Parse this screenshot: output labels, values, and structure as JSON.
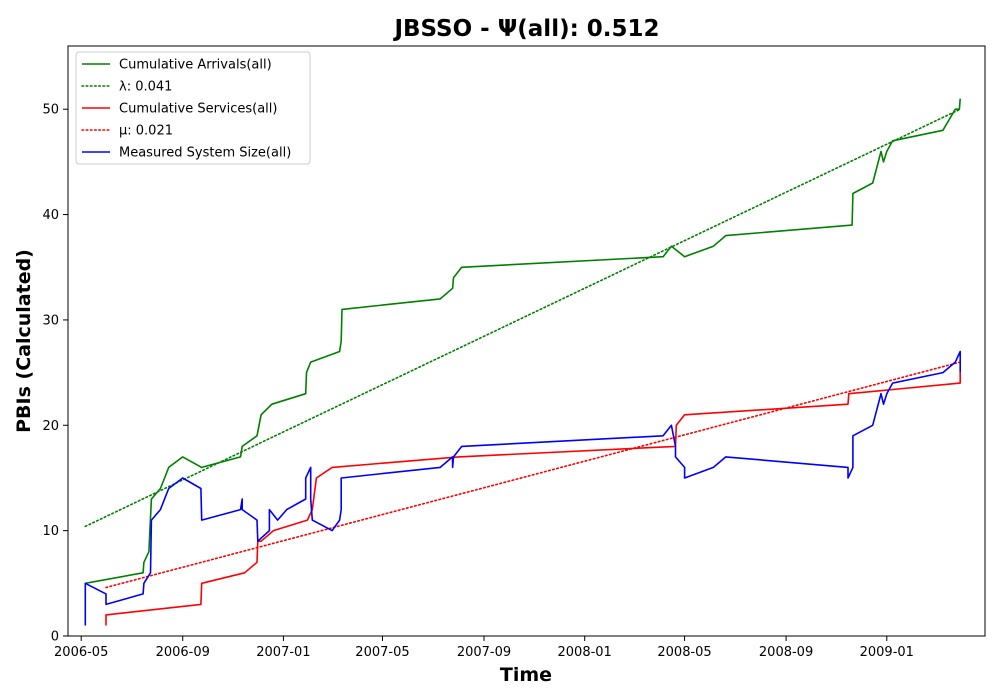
{
  "chart_data": {
    "type": "line",
    "title": "JBSSO -  Ψ(all): 0.512",
    "xlabel": "Time",
    "ylabel": "PBIs (Calculated)",
    "x_ticks": [
      "2006-05",
      "2006-09",
      "2007-01",
      "2007-05",
      "2007-09",
      "2008-01",
      "2008-05",
      "2008-09",
      "2009-01"
    ],
    "xlim": [
      "2006-04-15",
      "2009-04-30"
    ],
    "ylim": [
      0,
      56
    ],
    "y_ticks": [
      0,
      10,
      20,
      30,
      40,
      50
    ],
    "grid": false,
    "legend_position": "top-left",
    "series": [
      {
        "name": "Cumulative Arrivals(all)",
        "color": "#008000",
        "style": "solid",
        "points": [
          [
            "2006-05-06",
            5
          ],
          [
            "2006-07-15",
            6
          ],
          [
            "2006-07-16",
            7
          ],
          [
            "2006-07-22",
            8
          ],
          [
            "2006-07-25",
            13
          ],
          [
            "2006-08-05",
            14
          ],
          [
            "2006-08-10",
            15
          ],
          [
            "2006-08-15",
            16
          ],
          [
            "2006-09-01",
            17
          ],
          [
            "2006-09-24",
            16
          ],
          [
            "2006-11-10",
            17
          ],
          [
            "2006-11-12",
            18
          ],
          [
            "2006-11-30",
            19
          ],
          [
            "2006-12-05",
            21
          ],
          [
            "2006-12-18",
            22
          ],
          [
            "2007-01-28",
            23
          ],
          [
            "2007-01-29",
            25
          ],
          [
            "2007-02-03",
            26
          ],
          [
            "2007-03-10",
            27
          ],
          [
            "2007-03-12",
            28
          ],
          [
            "2007-03-13",
            31
          ],
          [
            "2007-07-10",
            32
          ],
          [
            "2007-07-25",
            33
          ],
          [
            "2007-07-26",
            34
          ],
          [
            "2007-08-05",
            35
          ],
          [
            "2008-04-05",
            36
          ],
          [
            "2008-04-15",
            37
          ],
          [
            "2008-05-01",
            36
          ],
          [
            "2008-06-05",
            37
          ],
          [
            "2008-06-20",
            38
          ],
          [
            "2008-11-20",
            39
          ],
          [
            "2008-11-21",
            42
          ],
          [
            "2008-12-15",
            43
          ],
          [
            "2008-12-25",
            46
          ],
          [
            "2008-12-28",
            45
          ],
          [
            "2009-01-01",
            46
          ],
          [
            "2009-01-08",
            47
          ],
          [
            "2009-03-10",
            48
          ],
          [
            "2009-03-25",
            50
          ],
          [
            "2009-03-30",
            50
          ],
          [
            "2009-03-31",
            51
          ]
        ]
      },
      {
        "name": "λ: 0.041",
        "color": "#008000",
        "style": "dotted",
        "points": [
          [
            "2006-05-06",
            10.4
          ],
          [
            "2009-03-31",
            50.0
          ]
        ]
      },
      {
        "name": "Cumulative Services(all)",
        "color": "#ff0000",
        "style": "solid",
        "points": [
          [
            "2006-05-31",
            1
          ],
          [
            "2006-05-31",
            2
          ],
          [
            "2006-09-23",
            3
          ],
          [
            "2006-09-24",
            5
          ],
          [
            "2006-11-15",
            6
          ],
          [
            "2006-11-30",
            7
          ],
          [
            "2006-12-01",
            9
          ],
          [
            "2006-12-05",
            9
          ],
          [
            "2006-12-20",
            10
          ],
          [
            "2007-01-30",
            11
          ],
          [
            "2007-02-05",
            12
          ],
          [
            "2007-02-10",
            15
          ],
          [
            "2007-03-01",
            16
          ],
          [
            "2007-08-01",
            17
          ],
          [
            "2008-04-20",
            18
          ],
          [
            "2008-04-21",
            20
          ],
          [
            "2008-05-01",
            21
          ],
          [
            "2008-11-15",
            22
          ],
          [
            "2008-11-16",
            23
          ],
          [
            "2009-03-31",
            24
          ],
          [
            "2009-03-31",
            25
          ]
        ]
      },
      {
        "name": "μ: 0.021",
        "color": "#ff0000",
        "style": "dotted",
        "points": [
          [
            "2006-05-31",
            4.6
          ],
          [
            "2009-03-31",
            26.0
          ]
        ]
      },
      {
        "name": "Measured System Size(all)",
        "color": "#0000ff",
        "style": "solid",
        "points": [
          [
            "2006-05-06",
            1
          ],
          [
            "2006-05-06",
            5
          ],
          [
            "2006-05-31",
            4
          ],
          [
            "2006-05-31",
            3
          ],
          [
            "2006-07-15",
            4
          ],
          [
            "2006-07-16",
            5
          ],
          [
            "2006-07-24",
            6
          ],
          [
            "2006-07-25",
            11
          ],
          [
            "2006-08-05",
            12
          ],
          [
            "2006-08-15",
            14
          ],
          [
            "2006-09-01",
            15
          ],
          [
            "2006-09-23",
            14
          ],
          [
            "2006-09-24",
            11
          ],
          [
            "2006-11-10",
            12
          ],
          [
            "2006-11-12",
            13
          ],
          [
            "2006-11-12",
            12
          ],
          [
            "2006-11-30",
            11
          ],
          [
            "2006-12-01",
            9
          ],
          [
            "2006-12-15",
            10
          ],
          [
            "2006-12-15",
            12
          ],
          [
            "2006-12-25",
            11
          ],
          [
            "2007-01-05",
            12
          ],
          [
            "2007-01-28",
            13
          ],
          [
            "2007-01-28",
            15
          ],
          [
            "2007-02-03",
            16
          ],
          [
            "2007-02-03",
            13
          ],
          [
            "2007-02-05",
            11
          ],
          [
            "2007-03-01",
            10
          ],
          [
            "2007-03-10",
            11
          ],
          [
            "2007-03-12",
            12
          ],
          [
            "2007-03-12",
            15
          ],
          [
            "2007-07-10",
            16
          ],
          [
            "2007-07-25",
            17
          ],
          [
            "2007-07-25",
            16
          ],
          [
            "2007-07-26",
            17
          ],
          [
            "2007-08-05",
            18
          ],
          [
            "2008-04-05",
            19
          ],
          [
            "2008-04-15",
            20
          ],
          [
            "2008-04-20",
            18
          ],
          [
            "2008-04-20",
            17
          ],
          [
            "2008-05-01",
            16
          ],
          [
            "2008-05-01",
            15
          ],
          [
            "2008-06-05",
            16
          ],
          [
            "2008-06-20",
            17
          ],
          [
            "2008-11-15",
            16
          ],
          [
            "2008-11-15",
            15
          ],
          [
            "2008-11-21",
            16
          ],
          [
            "2008-11-21",
            19
          ],
          [
            "2008-12-15",
            20
          ],
          [
            "2008-12-25",
            23
          ],
          [
            "2008-12-28",
            22
          ],
          [
            "2009-01-01",
            23
          ],
          [
            "2009-01-08",
            24
          ],
          [
            "2009-03-10",
            25
          ],
          [
            "2009-03-25",
            26
          ],
          [
            "2009-03-31",
            27
          ],
          [
            "2009-03-31",
            25
          ]
        ]
      }
    ]
  }
}
